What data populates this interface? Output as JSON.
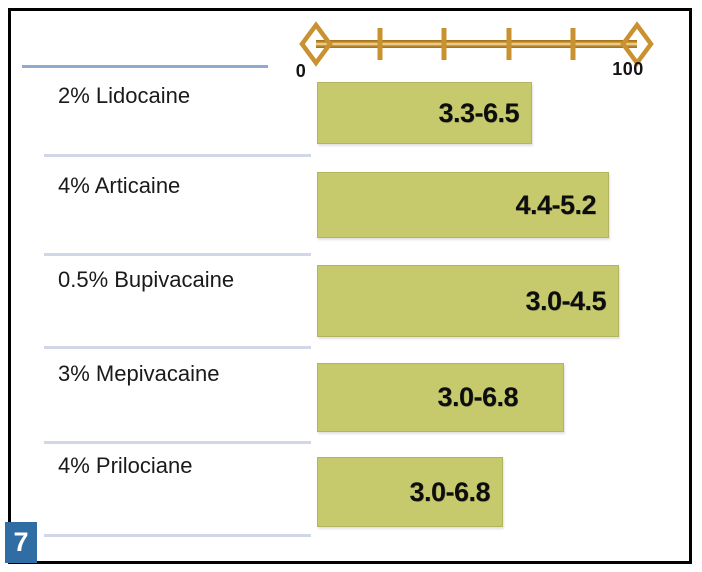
{
  "slide": {
    "figure_number": "7"
  },
  "axis": {
    "min_label": "0",
    "max_label": "100"
  },
  "rows": [
    {
      "label": "2% Lidocaine",
      "value": "3.3-6.5"
    },
    {
      "label": "4% Articaine",
      "value": "4.4-5.2"
    },
    {
      "label": "0.5% Bupivacaine",
      "value": "3.0-4.5"
    },
    {
      "label": "3% Mepivacaine",
      "value": "3.0-6.8"
    },
    {
      "label": "4% Prilociane",
      "value": "3.0-6.8"
    }
  ],
  "colors": {
    "bar_fill": "#c6ca6d",
    "axis_gold": "#c9912f",
    "badge_blue": "#2f6da4",
    "divider_blue": "#8fa9d1",
    "divider_light": "#d2d7e7"
  },
  "chart_data": {
    "type": "bar",
    "orientation": "horizontal",
    "title": "",
    "categories": [
      "2% Lidocaine",
      "4% Articaine",
      "0.5% Bupivacaine",
      "3% Mepivacaine",
      "4% Prilociane"
    ],
    "bar_labels": [
      "3.3-6.5",
      "4.4-5.2",
      "3.0-4.5",
      "3.0-6.8",
      "3.0-6.8"
    ],
    "values": [
      67,
      91,
      94,
      77,
      58
    ],
    "xlabel": "",
    "ylabel": "",
    "xlim": [
      0,
      100
    ],
    "x_ticks": [
      0,
      20,
      40,
      60,
      80,
      100
    ],
    "grid": false,
    "legend_position": "none",
    "bar_color": "#c6ca6d"
  }
}
